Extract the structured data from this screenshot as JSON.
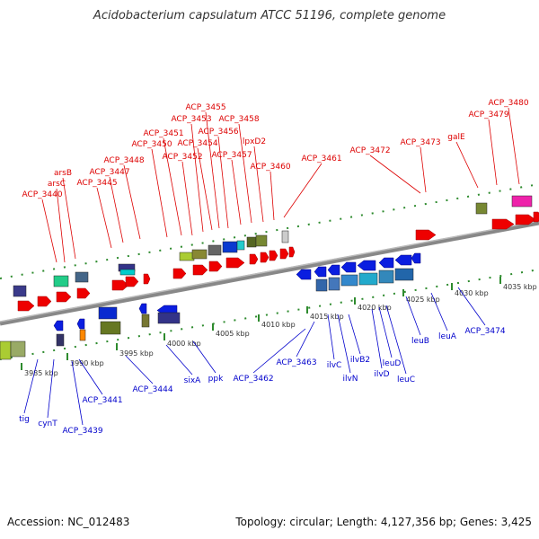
{
  "title": "Acidobacterium capsulatum ATCC 51196, complete genome",
  "footer": {
    "accession": "Accession: NC_012483",
    "topology": "Topology: circular; Length: 4,127,356 bp; Genes: 3,425"
  },
  "colors": {
    "forward_label": "#dd0000",
    "reverse_label": "#0000cc",
    "axis": "#888888",
    "tick_marks": "#2e8b2e"
  },
  "ticks": [
    "3985 kbp",
    "3990 kbp",
    "3995 kbp",
    "4000 kbp",
    "4005 kbp",
    "4010 kbp",
    "4015 kbp",
    "4020 kbp",
    "4025 kbp",
    "4030 kbp",
    "4035 kbp"
  ],
  "forward_genes": [
    "ACP_3440",
    "arsC",
    "arsB",
    "ACP_3445",
    "ACP_3447",
    "ACP_3448",
    "ACP_3450",
    "ACP_3451",
    "ACP_3452",
    "ACP_3453",
    "ACP_3454",
    "ACP_3455",
    "ACP_3456",
    "ACP_3457",
    "ACP_3458",
    "lpxD2",
    "ACP_3460",
    "ACP_3461",
    "ACP_3472",
    "ACP_3473",
    "galE",
    "ACP_3479",
    "ACP_3480"
  ],
  "reverse_genes": [
    "tig",
    "cynT",
    "ACP_3439",
    "ACP_3441",
    "ACP_3444",
    "sixA",
    "ppk",
    "ACP_3462",
    "ACP_3463",
    "ilvC",
    "ilvN",
    "ilvB2",
    "ilvD",
    "leuD",
    "leuC",
    "leuB",
    "leuA",
    "ACP_3474"
  ]
}
